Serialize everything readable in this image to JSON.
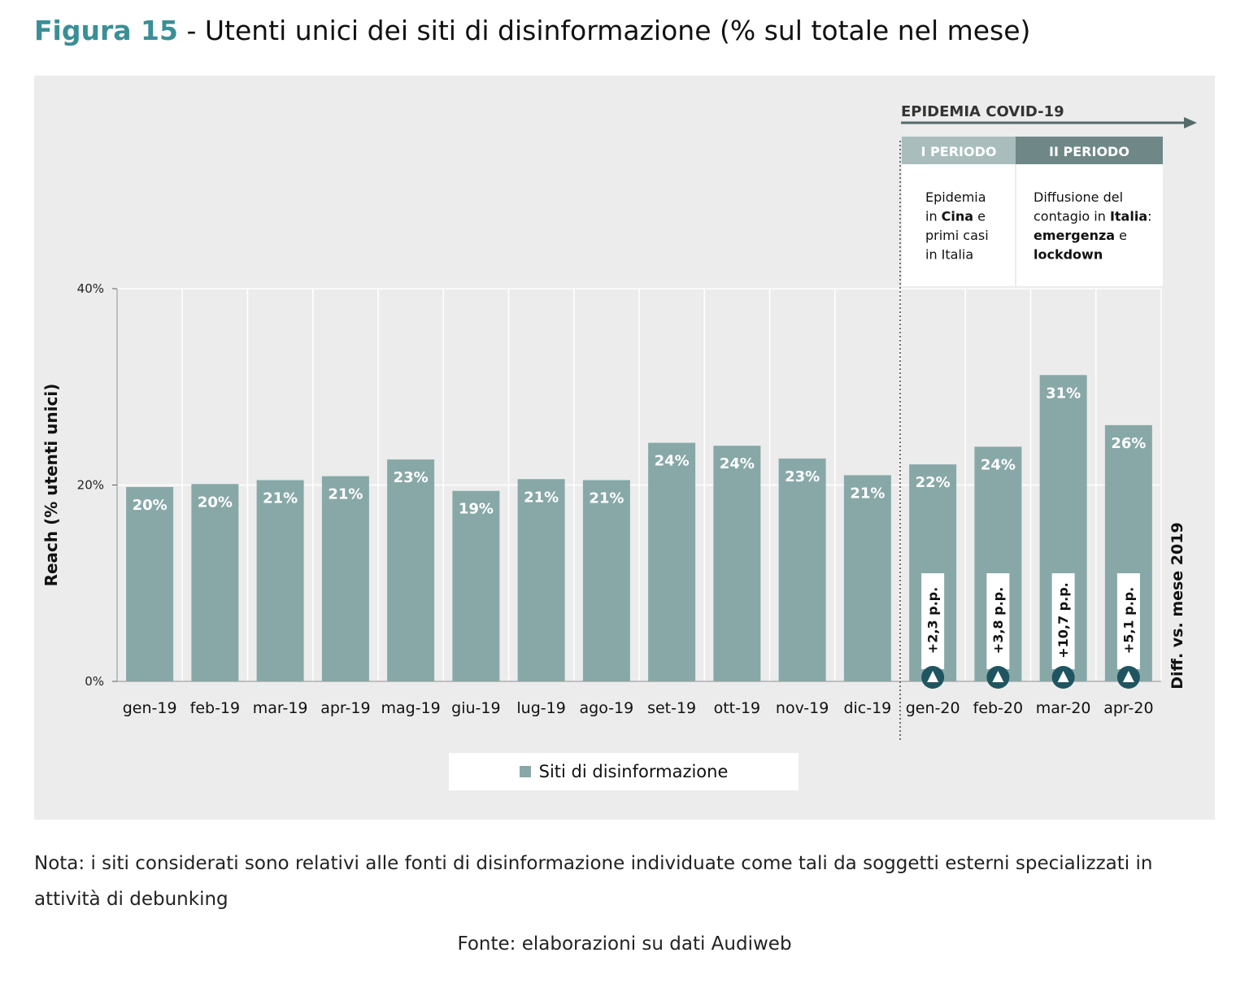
{
  "title": {
    "figure_label": "Figura 15",
    "separator": "-",
    "text": "Utenti unici dei siti di disinformazione (% sul totale nel mese)"
  },
  "colors": {
    "bar": "#88a8a8",
    "accent": "#3a8f96",
    "marker": "#1f5560",
    "period1": "#a9bdbd",
    "period2": "#6f8787"
  },
  "chart_data": {
    "type": "bar",
    "categories": [
      "gen-19",
      "feb-19",
      "mar-19",
      "apr-19",
      "mag-19",
      "giu-19",
      "lug-19",
      "ago-19",
      "set-19",
      "ott-19",
      "nov-19",
      "dic-19",
      "gen-20",
      "feb-20",
      "mar-20",
      "apr-20"
    ],
    "series": [
      {
        "name": "Siti di disinformazione",
        "values": [
          19.8,
          20.1,
          20.5,
          20.9,
          22.6,
          19.4,
          20.6,
          20.5,
          24.3,
          24.0,
          22.7,
          21.0,
          22.1,
          23.9,
          31.2,
          26.1
        ],
        "data_labels": [
          "20%",
          "20%",
          "21%",
          "21%",
          "23%",
          "19%",
          "21%",
          "21%",
          "24%",
          "24%",
          "23%",
          "21%",
          "22%",
          "24%",
          "31%",
          "26%"
        ]
      }
    ],
    "ylabel": "Reach (% utenti unici)",
    "ylim": [
      0,
      40
    ],
    "yticks": [
      0,
      20,
      40
    ],
    "ytick_labels": [
      "0%",
      "20%",
      "40%"
    ],
    "grid": true,
    "legend_position": "bottom",
    "diff_axis_label": "Diff. vs. mese 2019",
    "diff_labels": [
      "+2,3 p.p.",
      "+3,8 p.p.",
      "+10,7 p.p.",
      "+5,1 p.p."
    ],
    "diff_categories": [
      "gen-20",
      "feb-20",
      "mar-20",
      "apr-20"
    ],
    "annotation": {
      "arrow_label": "EPIDEMIA COVID-19",
      "periods": [
        {
          "header": "I PERIODO",
          "lines": [
            [
              {
                "t": "Epidemia",
                "b": false
              }
            ],
            [
              {
                "t": "in ",
                "b": false
              },
              {
                "t": "Cina",
                "b": true
              },
              {
                "t": " e",
                "b": false
              }
            ],
            [
              {
                "t": "primi casi",
                "b": false
              }
            ],
            [
              {
                "t": "in Italia",
                "b": false
              }
            ]
          ]
        },
        {
          "header": "II PERIODO",
          "lines": [
            [
              {
                "t": "Diffusione del",
                "b": false
              }
            ],
            [
              {
                "t": "contagio in ",
                "b": false
              },
              {
                "t": "Italia",
                "b": true
              },
              {
                "t": ":",
                "b": false
              }
            ],
            [
              {
                "t": "emergenza",
                "b": true
              },
              {
                "t": " e",
                "b": false
              }
            ],
            [
              {
                "t": "lockdown",
                "b": true
              }
            ]
          ]
        }
      ]
    }
  },
  "note": "Nota: i siti considerati sono relativi alle fonti di disinformazione individuate come tali da soggetti esterni specializzati in attività di debunking",
  "source": "Fonte: elaborazioni su dati Audiweb"
}
